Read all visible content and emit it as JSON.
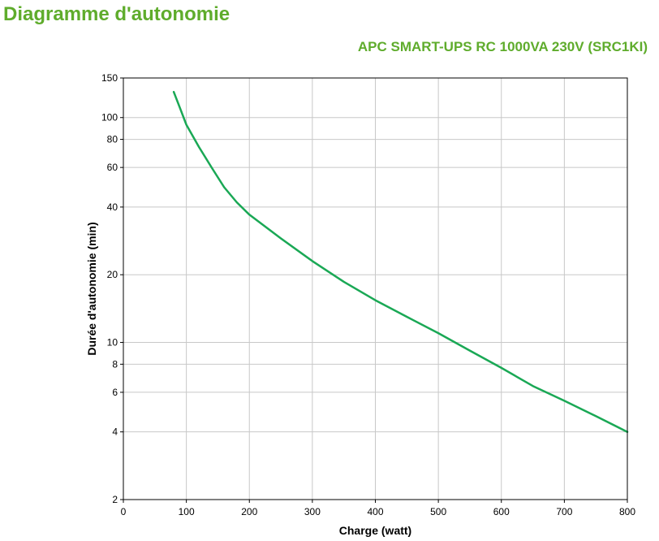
{
  "header": {
    "title": "Diagramme d'autonomie",
    "subtitle": "APC SMART-UPS RC 1000VA 230V (SRC1KI)"
  },
  "colors": {
    "title": "#5fac2c",
    "series": "#1aa855",
    "grid": "#c8c8c8",
    "axis": "#000000"
  },
  "chart_data": {
    "type": "line",
    "title": "APC SMART-UPS RC 1000VA 230V (SRC1KI)",
    "xlabel": "Charge (watt)",
    "ylabel": "Durée d'autonomie (min)",
    "xlim": [
      0,
      800
    ],
    "ylim": [
      2,
      150
    ],
    "yscale": "log",
    "grid": true,
    "xticks": [
      0,
      100,
      200,
      300,
      400,
      500,
      600,
      700,
      800
    ],
    "yticks": [
      2,
      4,
      6,
      8,
      10,
      20,
      40,
      60,
      80,
      100,
      150
    ],
    "series": [
      {
        "name": "",
        "x": [
          80,
          90,
          100,
          120,
          140,
          160,
          180,
          200,
          250,
          300,
          350,
          400,
          450,
          500,
          550,
          600,
          650,
          700,
          750,
          800
        ],
        "y": [
          130,
          110,
          93,
          74,
          60,
          49,
          42,
          37,
          29,
          23,
          18.6,
          15.4,
          13,
          11,
          9.2,
          7.7,
          6.4,
          5.5,
          4.7,
          4
        ]
      }
    ]
  }
}
